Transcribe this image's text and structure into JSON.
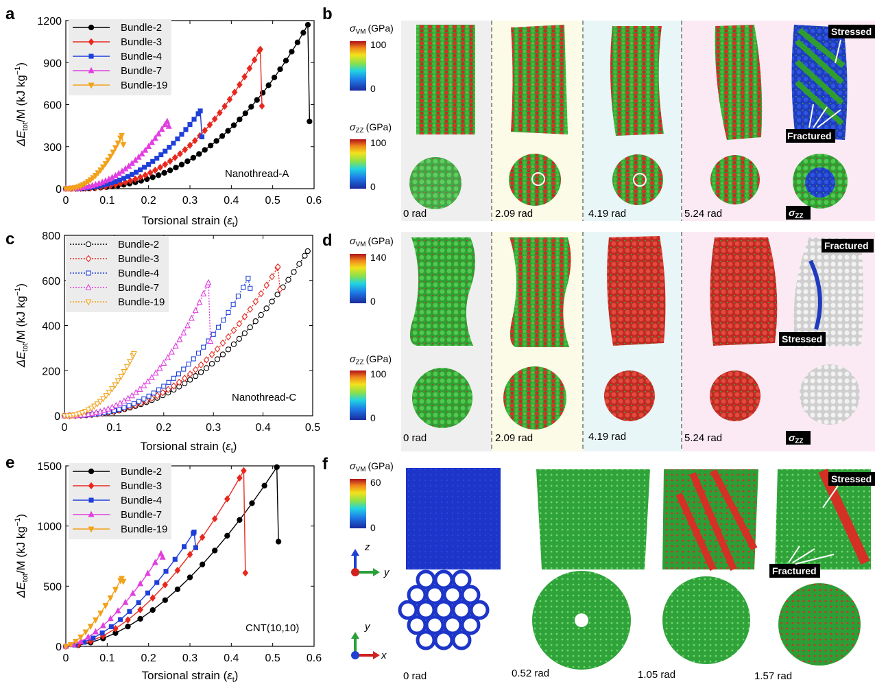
{
  "panels": {
    "a": "a",
    "b": "b",
    "c": "c",
    "d": "d",
    "e": "e",
    "f": "f"
  },
  "colors": {
    "Bundle-2": "#000000",
    "Bundle-3": "#e8281f",
    "Bundle-4": "#1f3fd9",
    "Bundle-7": "#e23ee0",
    "Bundle-19": "#f2a21a"
  },
  "chart_data": [
    {
      "id": "a",
      "type": "line",
      "marker_style": "filled",
      "ylabel_main": "ΔE",
      "ylabel_sub": "tot",
      "ylabel_rest": "/M (kJ kg",
      "ylabel_sup": "−1",
      "ylabel_close": ")",
      "xlabel_main": "Torsional strain (",
      "xlabel_sym": "ε",
      "xlabel_sub": "t",
      "xlabel_close": ")",
      "annotation": "Nanothread-A",
      "xlim": [
        0,
        0.6
      ],
      "ylim": [
        0,
        1200
      ],
      "xticks": [
        "0",
        "0.1",
        "0.2",
        "0.3",
        "0.4",
        "0.5",
        "0.6"
      ],
      "yticks": [
        "0",
        "300",
        "600",
        "900",
        "1200"
      ],
      "series": [
        {
          "name": "Bundle-2",
          "end": 0.585,
          "peak": 1170,
          "exp": 2.6,
          "drop": 480,
          "step": 0.014
        },
        {
          "name": "Bundle-3",
          "end": 0.47,
          "peak": 995,
          "exp": 2.6,
          "drop": 590,
          "step": 0.012
        },
        {
          "name": "Bundle-4",
          "end": 0.325,
          "peak": 555,
          "exp": 2.4,
          "drop": 370,
          "step": 0.01
        },
        {
          "name": "Bundle-7",
          "end": 0.245,
          "peak": 480,
          "exp": 2.3,
          "drop": 445,
          "step": 0.008
        },
        {
          "name": "Bundle-19",
          "end": 0.135,
          "peak": 380,
          "exp": 2.2,
          "drop": 315,
          "step": 0.006
        }
      ]
    },
    {
      "id": "c",
      "type": "line",
      "marker_style": "open",
      "ylabel_main": "ΔE",
      "ylabel_sub": "tot",
      "ylabel_rest": "/M (kJ kg",
      "ylabel_sup": "−1",
      "ylabel_close": ")",
      "xlabel_main": "Torsional strain (",
      "xlabel_sym": "ε",
      "xlabel_sub": "t",
      "xlabel_close": ")",
      "annotation": "Nanothread-C",
      "xlim": [
        0,
        0.5
      ],
      "ylim": [
        0,
        800
      ],
      "xticks": [
        "0",
        "0.1",
        "0.2",
        "0.3",
        "0.4",
        "0.5"
      ],
      "yticks": [
        "0",
        "200",
        "400",
        "600",
        "800"
      ],
      "series": [
        {
          "name": "Bundle-2",
          "end": 0.49,
          "peak": 730,
          "exp": 2.3,
          "drop": null,
          "step": 0.011
        },
        {
          "name": "Bundle-3",
          "end": 0.43,
          "peak": 660,
          "exp": 2.4,
          "drop": 560,
          "step": 0.011
        },
        {
          "name": "Bundle-4",
          "end": 0.37,
          "peak": 610,
          "exp": 2.5,
          "drop": 565,
          "step": 0.01
        },
        {
          "name": "Bundle-7",
          "end": 0.29,
          "peak": 590,
          "exp": 2.5,
          "drop": 330,
          "step": 0.008
        },
        {
          "name": "Bundle-19",
          "end": 0.14,
          "peak": 275,
          "exp": 2.2,
          "drop": null,
          "step": 0.006
        }
      ]
    },
    {
      "id": "e",
      "type": "line",
      "marker_style": "filled",
      "ylabel_main": "ΔE",
      "ylabel_sub": "tot",
      "ylabel_rest": "/M (kJ kg",
      "ylabel_sup": "−1",
      "ylabel_close": ")",
      "xlabel_main": "Torsional strain (",
      "xlabel_sym": "ε",
      "xlabel_sub": "t",
      "xlabel_close": ")",
      "annotation": "CNT(10,10)",
      "xlim": [
        0,
        0.6
      ],
      "ylim": [
        0,
        1500
      ],
      "xticks": [
        "0",
        "0.1",
        "0.2",
        "0.3",
        "0.4",
        "0.5",
        "0.6"
      ],
      "yticks": [
        "0",
        "500",
        "1000",
        "1500"
      ],
      "series": [
        {
          "name": "Bundle-2",
          "end": 0.51,
          "peak": 1490,
          "exp": 1.8,
          "drop": 870,
          "step": 0.03
        },
        {
          "name": "Bundle-3",
          "end": 0.43,
          "peak": 1460,
          "exp": 1.8,
          "drop": 610,
          "step": 0.03
        },
        {
          "name": "Bundle-4",
          "end": 0.31,
          "peak": 950,
          "exp": 1.7,
          "drop": 820,
          "step": 0.022
        },
        {
          "name": "Bundle-7",
          "end": 0.23,
          "peak": 770,
          "exp": 1.6,
          "drop": 740,
          "step": 0.018
        },
        {
          "name": "Bundle-19",
          "end": 0.135,
          "peak": 565,
          "exp": 1.5,
          "drop": 540,
          "step": 0.012
        }
      ]
    }
  ],
  "panel_b": {
    "colorbar_vm_sigma": "σ",
    "colorbar_vm_sub": "VM",
    "colorbar_vm_unit": "(GPa)",
    "colorbar_vm_max": "100",
    "colorbar_vm_min": "0",
    "colorbar_zz_sigma": "σ",
    "colorbar_zz_sub": "ZZ",
    "colorbar_zz_unit": "(GPa)",
    "colorbar_zz_max": "100",
    "colorbar_zz_min": "0",
    "rotations": [
      "0 rad",
      "2.09 rad",
      "4.19 rad",
      "5.24 rad"
    ],
    "stressed": "Stressed",
    "fractured": "Fractured",
    "zz_tag_sigma": "σ",
    "zz_tag_sub": "ZZ"
  },
  "panel_d": {
    "colorbar_vm_sigma": "σ",
    "colorbar_vm_sub": "VM",
    "colorbar_vm_unit": "(GPa)",
    "colorbar_vm_max": "140",
    "colorbar_vm_min": "0",
    "colorbar_zz_sigma": "σ",
    "colorbar_zz_sub": "ZZ",
    "colorbar_zz_unit": "(GPa)",
    "colorbar_zz_max": "100",
    "colorbar_zz_min": "0",
    "rotations": [
      "0 rad",
      "2.09 rad",
      "4.19 rad",
      "5.24 rad"
    ],
    "stressed": "Stressed",
    "fractured": "Fractured",
    "zz_tag_sigma": "σ",
    "zz_tag_sub": "ZZ"
  },
  "panel_f": {
    "colorbar_vm_sigma": "σ",
    "colorbar_vm_sub": "VM",
    "colorbar_vm_unit": "(GPa)",
    "colorbar_vm_max": "60",
    "colorbar_vm_min": "0",
    "axis_z": "z",
    "axis_y1": "y",
    "axis_y2": "y",
    "axis_x": "x",
    "rotations": [
      "0 rad",
      "0.52 rad",
      "1.05 rad",
      "1.57 rad"
    ],
    "stressed": "Stressed",
    "fractured": "Fractured"
  }
}
